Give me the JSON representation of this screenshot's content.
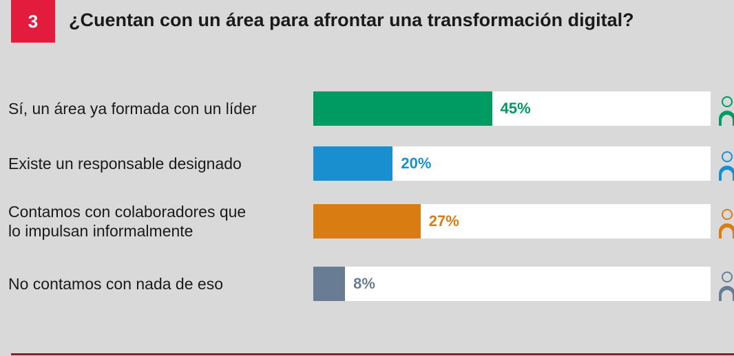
{
  "chart_data": {
    "type": "hbar",
    "badge": "3",
    "title": "¿Cuentan con un área para afrontar una transformación digital?",
    "categories": [
      "Sí, un área ya formada con un líder",
      "Existe un responsable designado",
      "Contamos con colaboradores que\nlo impulsan informalmente",
      "No contamos con nada de eso"
    ],
    "values": [
      45,
      20,
      27,
      8
    ],
    "value_labels": [
      "45%",
      "20%",
      "27%",
      "8%"
    ],
    "colors": [
      "#009a63",
      "#1a8fd0",
      "#d97c12",
      "#687d93"
    ],
    "xlim": [
      0,
      100
    ]
  }
}
